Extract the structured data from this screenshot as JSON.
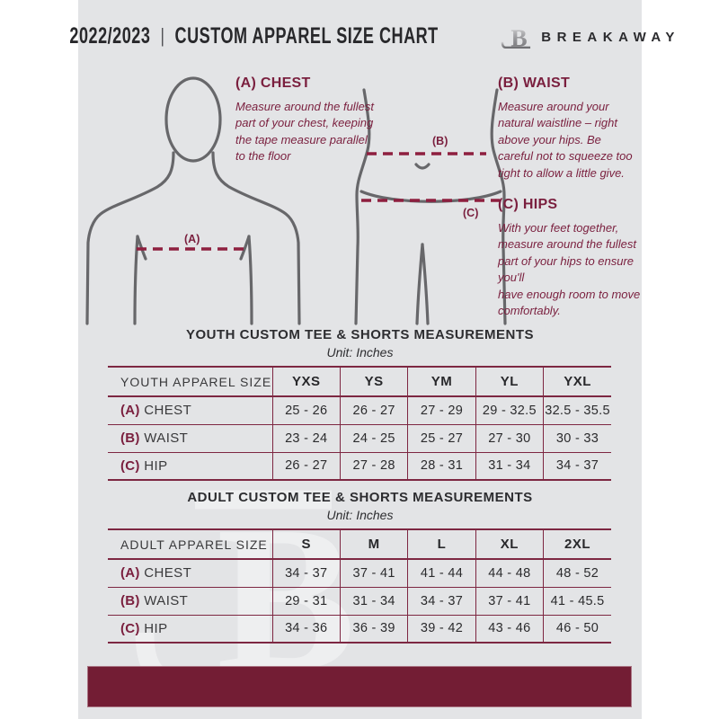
{
  "header": {
    "season": "2022/2023",
    "separator": "|",
    "title": "CUSTOM APPAREL SIZE CHART",
    "brand": "BREAKAWAY",
    "logo_letter": "B"
  },
  "instructions": [
    {
      "id": "A",
      "heading": "(A) CHEST",
      "marker": "(A)",
      "text": "Measure around the fullest part of your chest, keeping the tape measure parallel to the floor"
    },
    {
      "id": "B",
      "heading": "(B) WAIST",
      "marker": "(B)",
      "text": "Measure around your natural waistline – right above your hips. Be careful not to squeeze too tight to allow a little give."
    },
    {
      "id": "C",
      "heading": "(C) HIPS",
      "marker": "(C)",
      "text": "With your feet together, measure around the fullest part of your hips to ensure you'll\nhave enough room to move comfortably."
    }
  ],
  "youth_table": {
    "title": "YOUTH CUSTOM TEE & SHORTS MEASUREMENTS",
    "unit": "Unit: Inches",
    "header": [
      "YOUTH APPAREL SIZE",
      "YXS",
      "YS",
      "YM",
      "YL",
      "YXL"
    ],
    "rows": [
      {
        "prefix": "(A)",
        "label": "CHEST",
        "values": [
          "25 - 26",
          "26 - 27",
          "27 - 29",
          "29 - 32.5",
          "32.5 - 35.5"
        ]
      },
      {
        "prefix": "(B)",
        "label": "WAIST",
        "values": [
          "23 - 24",
          "24 - 25",
          "25 - 27",
          "27 - 30",
          "30 - 33"
        ]
      },
      {
        "prefix": "(C)",
        "label": "HIP",
        "values": [
          "26 - 27",
          "27 - 28",
          "28 - 31",
          "31 - 34",
          "34 - 37"
        ]
      }
    ]
  },
  "adult_table": {
    "title": "ADULT CUSTOM TEE & SHORTS MEASUREMENTS",
    "unit": "Unit: Inches",
    "header": [
      "ADULT APPAREL SIZE",
      "S",
      "M",
      "L",
      "XL",
      "2XL"
    ],
    "rows": [
      {
        "prefix": "(A)",
        "label": "CHEST",
        "values": [
          "34 - 37",
          "37 - 41",
          "41 - 44",
          "44 - 48",
          "48 - 52"
        ]
      },
      {
        "prefix": "(B)",
        "label": "WAIST",
        "values": [
          "29 - 31",
          "31 - 34",
          "34 - 37",
          "37 - 41",
          "41 - 45.5"
        ]
      },
      {
        "prefix": "(C)",
        "label": "HIP",
        "values": [
          "34 - 36",
          "36 - 39",
          "39 - 42",
          "43 - 46",
          "46 - 50"
        ]
      }
    ]
  },
  "colors": {
    "maroon": "#7a1f3e",
    "footer_maroon": "#731d34",
    "page_bg": "#e3e4e6",
    "text_dark": "#28282b",
    "figure_gray": "#67676a"
  }
}
